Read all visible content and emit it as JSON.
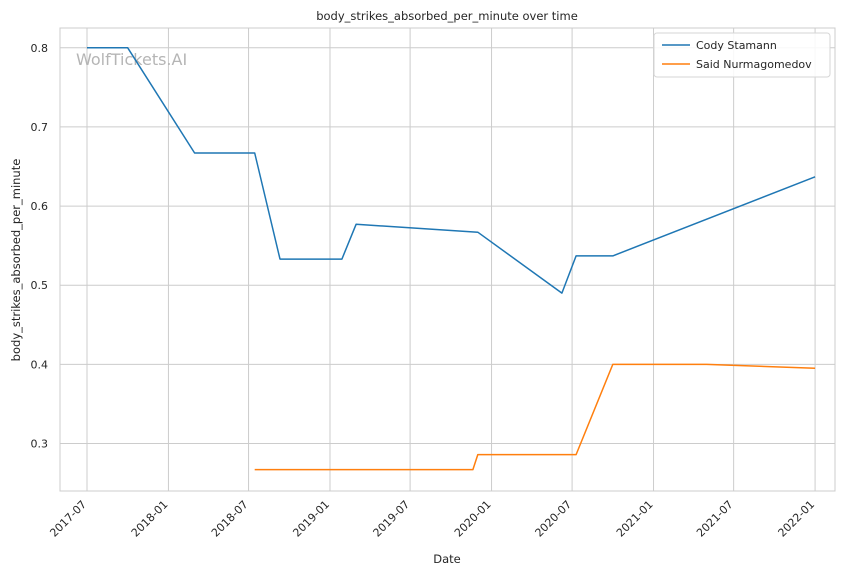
{
  "chart_data": {
    "type": "line",
    "title": "body_strikes_absorbed_per_minute over time",
    "xlabel": "Date",
    "ylabel": "body_strikes_absorbed_per_minute",
    "watermark": "WolfTickets.AI",
    "x_axis_type": "date",
    "xlim": [
      "2017-05-01",
      "2022-02-15"
    ],
    "ylim": [
      0.24,
      0.825
    ],
    "x_ticks": [
      "2017-07",
      "2018-01",
      "2018-07",
      "2019-01",
      "2019-07",
      "2020-01",
      "2020-07",
      "2021-01",
      "2021-07",
      "2022-01"
    ],
    "y_ticks": [
      0.3,
      0.4,
      0.5,
      0.6,
      0.7,
      0.8
    ],
    "grid": true,
    "legend_position": "top-right",
    "series": [
      {
        "name": "Cody Stamann",
        "color": "#1f77b4",
        "points": [
          {
            "x": "2017-07-01",
            "y": 0.8
          },
          {
            "x": "2017-10-01",
            "y": 0.8
          },
          {
            "x": "2018-03-01",
            "y": 0.667
          },
          {
            "x": "2018-07-15",
            "y": 0.667
          },
          {
            "x": "2018-09-10",
            "y": 0.533
          },
          {
            "x": "2019-01-28",
            "y": 0.533
          },
          {
            "x": "2019-03-01",
            "y": 0.577
          },
          {
            "x": "2019-12-01",
            "y": 0.567
          },
          {
            "x": "2020-06-08",
            "y": 0.49
          },
          {
            "x": "2020-07-10",
            "y": 0.537
          },
          {
            "x": "2020-10-01",
            "y": 0.537
          },
          {
            "x": "2022-01-01",
            "y": 0.637
          }
        ]
      },
      {
        "name": "Said Nurmagomedov",
        "color": "#ff7f0e",
        "points": [
          {
            "x": "2018-07-15",
            "y": 0.267
          },
          {
            "x": "2019-11-20",
            "y": 0.267
          },
          {
            "x": "2019-12-01",
            "y": 0.286
          },
          {
            "x": "2020-07-10",
            "y": 0.286
          },
          {
            "x": "2020-10-01",
            "y": 0.4
          },
          {
            "x": "2021-05-01",
            "y": 0.4
          },
          {
            "x": "2022-01-01",
            "y": 0.395
          }
        ]
      }
    ]
  }
}
